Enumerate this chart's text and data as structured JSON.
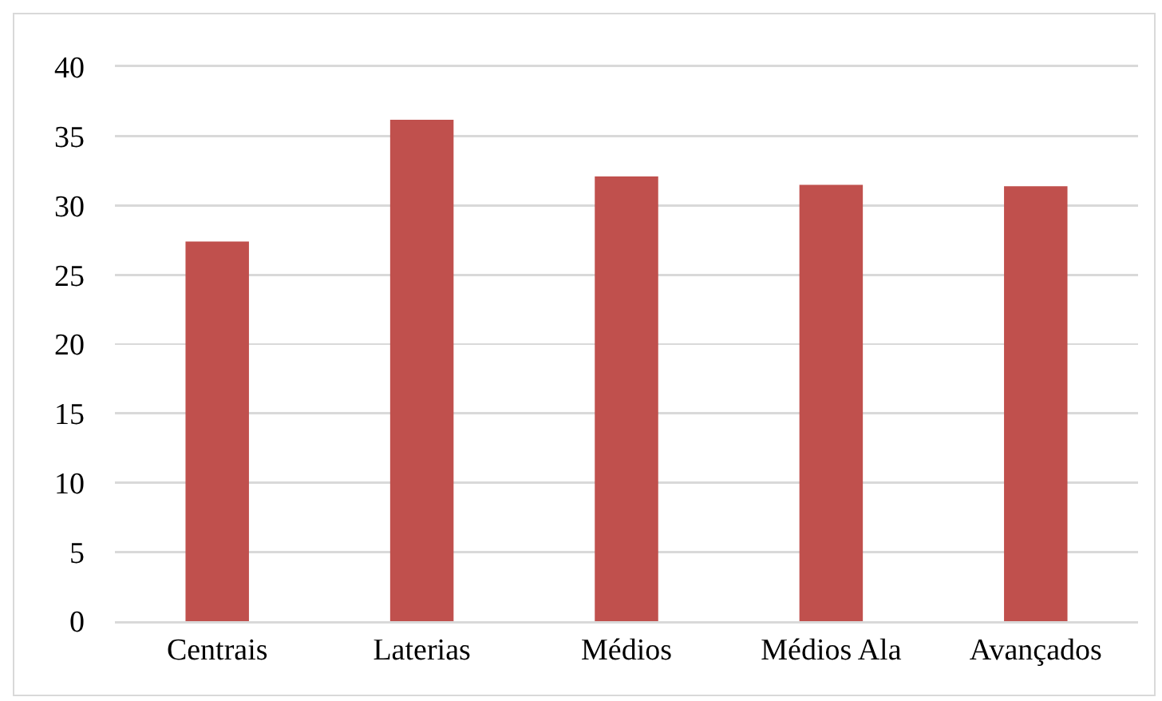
{
  "chart_data": {
    "type": "bar",
    "categories": [
      "Centrais",
      "Laterias",
      "Médios",
      "Médios Ala",
      "Avançados"
    ],
    "values": [
      27.4,
      36.2,
      32.1,
      31.5,
      31.4
    ],
    "color": "#c0504d",
    "ylim": [
      0,
      40
    ],
    "yticks": [
      0,
      5,
      10,
      15,
      20,
      25,
      30,
      35,
      40
    ],
    "grid": "y"
  }
}
